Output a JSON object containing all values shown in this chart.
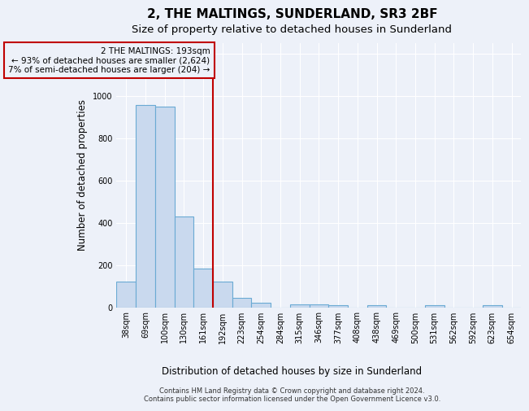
{
  "title": "2, THE MALTINGS, SUNDERLAND, SR3 2BF",
  "subtitle": "Size of property relative to detached houses in Sunderland",
  "xlabel": "Distribution of detached houses by size in Sunderland",
  "ylabel": "Number of detached properties",
  "categories": [
    "38sqm",
    "69sqm",
    "100sqm",
    "130sqm",
    "161sqm",
    "192sqm",
    "223sqm",
    "254sqm",
    "284sqm",
    "315sqm",
    "346sqm",
    "377sqm",
    "408sqm",
    "438sqm",
    "469sqm",
    "500sqm",
    "531sqm",
    "562sqm",
    "592sqm",
    "623sqm",
    "654sqm"
  ],
  "values": [
    120,
    955,
    948,
    430,
    183,
    120,
    43,
    20,
    0,
    13,
    15,
    10,
    0,
    9,
    0,
    0,
    9,
    0,
    0,
    9,
    0
  ],
  "bar_color": "#c9d9ee",
  "bar_edge_color": "#6aaad4",
  "ylim": [
    0,
    1250
  ],
  "yticks": [
    0,
    200,
    400,
    600,
    800,
    1000,
    1200
  ],
  "vline_x": 4.5,
  "vline_color": "#c00000",
  "annotation_text": "2 THE MALTINGS: 193sqm\n← 93% of detached houses are smaller (2,624)\n7% of semi-detached houses are larger (204) →",
  "annotation_box_color": "#c00000",
  "footer_text": "Contains HM Land Registry data © Crown copyright and database right 2024.\nContains public sector information licensed under the Open Government Licence v3.0.",
  "background_color": "#edf1f9",
  "grid_color": "#ffffff",
  "title_fontsize": 11,
  "subtitle_fontsize": 9.5,
  "tick_fontsize": 7,
  "ylabel_fontsize": 8.5,
  "xlabel_fontsize": 8.5,
  "annotation_fontsize": 7.5,
  "footer_fontsize": 6
}
